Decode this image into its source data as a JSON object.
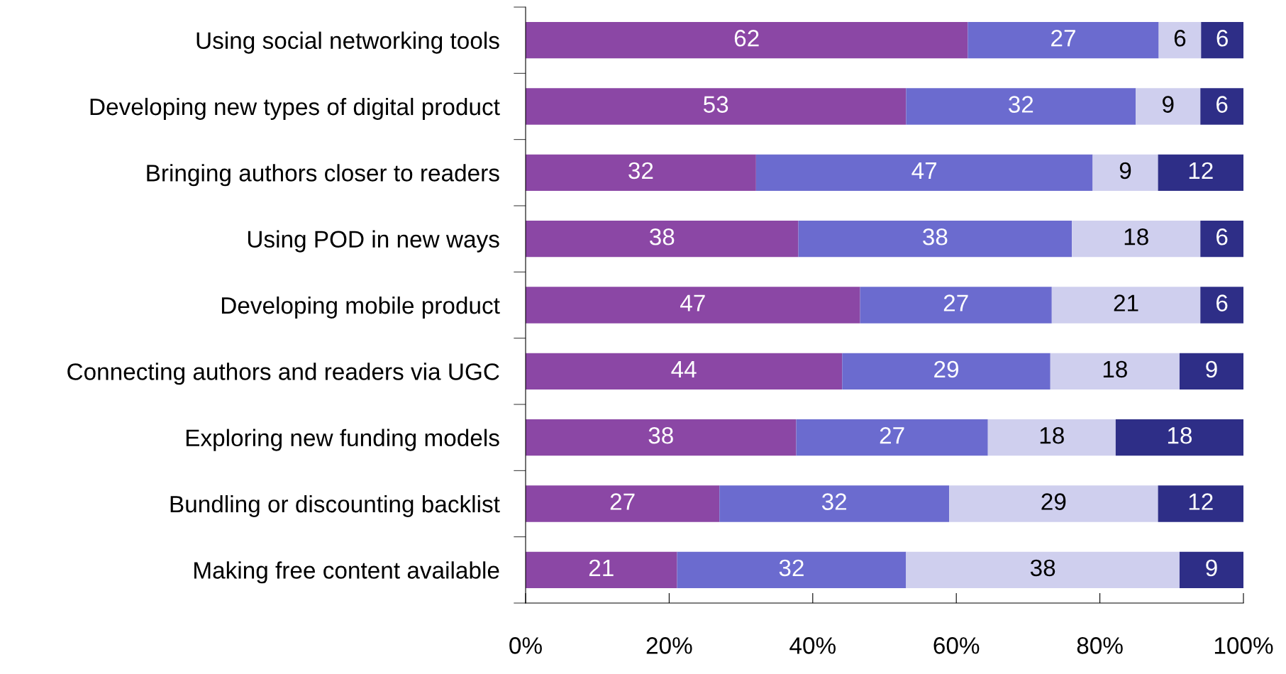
{
  "chart_data": {
    "type": "bar",
    "orientation": "horizontal",
    "stacked": true,
    "categories": [
      "Using social networking tools",
      "Developing new types of digital product",
      "Bringing authors closer to readers",
      "Using POD in new ways",
      "Developing mobile product",
      "Connecting authors and readers via UGC",
      "Exploring new funding models",
      "Bundling or discounting backlist",
      "Making free content available"
    ],
    "series": [
      {
        "color": "#8b47a5",
        "values": [
          61.6,
          53.0,
          32.1,
          38.0,
          46.6,
          44.1,
          37.7,
          27.0,
          21.1
        ],
        "value_labels": [
          "62",
          "53",
          "32",
          "38",
          "47",
          "44",
          "38",
          "27",
          "21"
        ]
      },
      {
        "color": "#6b6bcf",
        "values": [
          26.6,
          32.0,
          46.9,
          38.1,
          26.7,
          29.0,
          26.7,
          32.0,
          31.9
        ],
        "value_labels": [
          "27",
          "32",
          "47",
          "38",
          "27",
          "29",
          "27",
          "32",
          "32"
        ]
      },
      {
        "color": "#cfcfee",
        "values": [
          5.9,
          9.0,
          9.1,
          17.9,
          20.7,
          18.0,
          17.8,
          29.1,
          38.1
        ],
        "value_labels": [
          "6",
          "9",
          "9",
          "18",
          "21",
          "18",
          "18",
          "29",
          "38"
        ]
      },
      {
        "color": "#2e2e87",
        "values": [
          5.9,
          6.0,
          11.9,
          6.0,
          6.0,
          8.9,
          17.8,
          11.9,
          8.9
        ],
        "value_labels": [
          "6",
          "6",
          "12",
          "6",
          "6",
          "9",
          "18",
          "12",
          "9"
        ]
      }
    ],
    "xlim": [
      0,
      100
    ],
    "xticks": [
      {
        "value": 0,
        "label": "0%"
      },
      {
        "value": 20,
        "label": "20%"
      },
      {
        "value": 40,
        "label": "40%"
      },
      {
        "value": 60,
        "label": "60%"
      },
      {
        "value": 80,
        "label": "80%"
      },
      {
        "value": 100,
        "label": "100%"
      }
    ],
    "grid": false
  }
}
